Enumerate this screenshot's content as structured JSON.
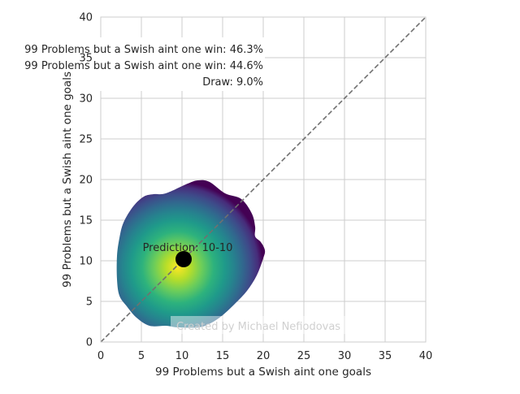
{
  "chart_data": {
    "type": "scatter",
    "title": "",
    "xlabel": "99 Problems but a Swish aint one goals",
    "ylabel": "99 Problems but a Swish aint one goals",
    "xlim": [
      0,
      40
    ],
    "ylim": [
      0,
      40
    ],
    "xticks": [
      "0",
      "5",
      "10",
      "15",
      "20",
      "25",
      "30",
      "35",
      "40"
    ],
    "yticks": [
      "0",
      "5",
      "10",
      "15",
      "20",
      "25",
      "30",
      "35",
      "40"
    ],
    "grid": true,
    "reference_line": {
      "from": [
        0,
        0
      ],
      "to": [
        40,
        40
      ],
      "style": "dashed",
      "color": "#707070"
    },
    "density": {
      "colormap": "viridis",
      "center": [
        9.5,
        9.2
      ],
      "outline": [
        [
          6.0,
          2.0
        ],
        [
          8.0,
          2.0
        ],
        [
          9.5,
          1.8
        ],
        [
          12.0,
          1.8
        ],
        [
          13.5,
          2.3
        ],
        [
          15.0,
          3.3
        ],
        [
          16.6,
          4.8
        ],
        [
          18.0,
          6.3
        ],
        [
          19.2,
          8.2
        ],
        [
          20.0,
          10.3
        ],
        [
          20.2,
          11.3
        ],
        [
          19.7,
          12.3
        ],
        [
          19.0,
          13.0
        ],
        [
          19.0,
          14.2
        ],
        [
          18.6,
          15.8
        ],
        [
          17.3,
          17.6
        ],
        [
          15.3,
          18.3
        ],
        [
          13.4,
          19.7
        ],
        [
          12.0,
          19.9
        ],
        [
          10.7,
          19.5
        ],
        [
          8.0,
          18.3
        ],
        [
          6.5,
          18.2
        ],
        [
          5.3,
          17.9
        ],
        [
          4.0,
          16.7
        ],
        [
          2.8,
          14.7
        ],
        [
          2.3,
          12.8
        ],
        [
          2.0,
          10.6
        ],
        [
          2.0,
          7.7
        ],
        [
          2.3,
          5.7
        ],
        [
          3.2,
          4.4
        ],
        [
          4.4,
          3.0
        ]
      ]
    },
    "prediction_point": {
      "x": 10.2,
      "y": 10.2,
      "color": "#000000"
    },
    "prediction_label": "Prediction: 10-10",
    "annotations": [
      "99 Problems but a Swish aint one win: 46.3%",
      "99 Problems but a Swish aint one win: 44.6%",
      "Draw: 9.0%"
    ],
    "watermark": "Created by Michael Nefiodovas"
  }
}
